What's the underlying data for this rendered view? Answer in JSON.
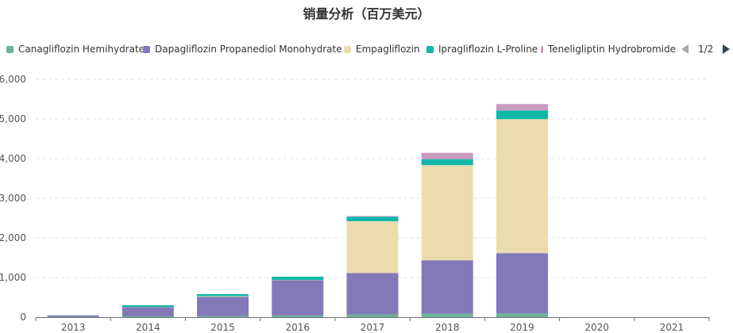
{
  "chart_data": {
    "type": "bar",
    "stacked": true,
    "title": "销量分析（百万美元）",
    "categories": [
      "2013",
      "2014",
      "2015",
      "2016",
      "2017",
      "2018",
      "2019",
      "2020",
      "2021"
    ],
    "ylim": [
      0,
      6000
    ],
    "yticks": [
      0,
      1000,
      2000,
      3000,
      4000,
      5000,
      6000
    ],
    "ytick_labels": [
      "0",
      "1,000",
      "2,000",
      "3,000",
      "4,000",
      "5,000",
      "6,000"
    ],
    "grid": true,
    "legend_position": "top",
    "series": [
      {
        "name": "Canagliflozin Hemihydrate",
        "color": "#6cb39a",
        "values": [
          5,
          20,
          25,
          45,
          70,
          85,
          95,
          0,
          0
        ]
      },
      {
        "name": "Dapagliflozin Propanediol Monohydrate",
        "color": "#8378b8",
        "values": [
          35,
          230,
          490,
          890,
          1040,
          1350,
          1520,
          0,
          0
        ]
      },
      {
        "name": "Empagliflozin",
        "color": "#ebdcad",
        "values": [
          0,
          5,
          15,
          5,
          1310,
          2400,
          3380,
          0,
          0
        ]
      },
      {
        "name": "Ipragliflozin L-Proline",
        "color": "#10b7a9",
        "values": [
          5,
          45,
          50,
          80,
          110,
          150,
          220,
          0,
          0
        ]
      },
      {
        "name": "Teneligliptin Hydrobromide",
        "color": "#c99bbf",
        "values": [
          0,
          0,
          0,
          0,
          20,
          160,
          160,
          0,
          0
        ]
      }
    ]
  },
  "legend": {
    "pager_text": "1/2"
  }
}
